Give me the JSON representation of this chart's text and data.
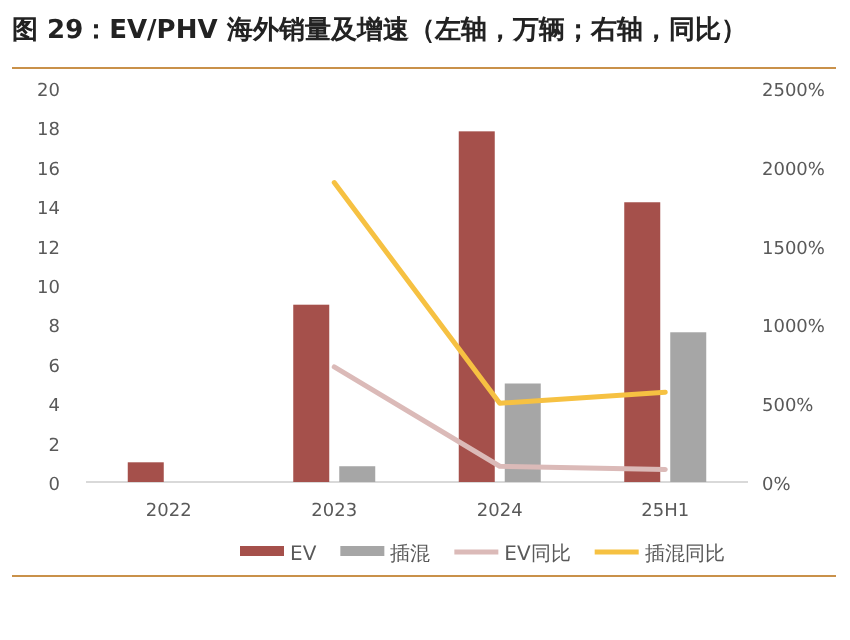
{
  "chart_data": {
    "type": "bar",
    "title": "图 29：EV/PHV 海外销量及增速（左轴，万辆；右轴，同比）",
    "categories": [
      "2022",
      "2023",
      "2024",
      "25H1"
    ],
    "series": [
      {
        "name": "EV",
        "color": "#a5504b",
        "values": [
          1.0,
          9.0,
          17.8,
          14.2
        ]
      },
      {
        "name": "插混",
        "color": "#a6a6a6",
        "values": [
          null,
          0.8,
          5.0,
          7.6
        ]
      },
      {
        "name": "EV同比",
        "type": "line",
        "axis": "y2",
        "color": "#dbbab8",
        "values": [
          null,
          730,
          100,
          80
        ]
      },
      {
        "name": "插混同比",
        "type": "line",
        "axis": "y2",
        "color": "#f6c142",
        "values": [
          null,
          1900,
          500,
          570
        ]
      }
    ],
    "ylim": [
      0,
      20
    ],
    "yticks": [
      0,
      2,
      4,
      6,
      8,
      10,
      12,
      14,
      16,
      18,
      20
    ],
    "y2lim": [
      0,
      2500
    ],
    "y2ticks": [
      {
        "value": 0,
        "label": "0%"
      },
      {
        "value": 500,
        "label": "500%"
      },
      {
        "value": 1000,
        "label": "1000%"
      },
      {
        "value": 1500,
        "label": "1500%"
      },
      {
        "value": 2000,
        "label": "2000%"
      },
      {
        "value": 2500,
        "label": "2500%"
      }
    ],
    "legend": "bottom"
  }
}
